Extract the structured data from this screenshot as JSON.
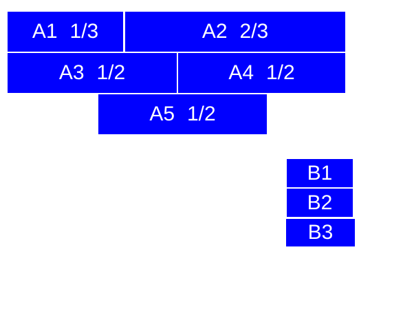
{
  "colors": {
    "background": "#ffffff",
    "box_fill": "#0000ff",
    "box_text": "#ffffff"
  },
  "group_a": {
    "blocks": [
      {
        "id": "A1",
        "label": "A1 1/3"
      },
      {
        "id": "A2",
        "label": "A2 2/3"
      },
      {
        "id": "A3",
        "label": "A3 1/2"
      },
      {
        "id": "A4",
        "label": "A4 1/2"
      },
      {
        "id": "A5",
        "label": "A5 1/2"
      }
    ]
  },
  "group_b": {
    "blocks": [
      {
        "id": "B1",
        "label": "B1"
      },
      {
        "id": "B2",
        "label": "B2"
      },
      {
        "id": "B3",
        "label": "B3"
      }
    ]
  }
}
